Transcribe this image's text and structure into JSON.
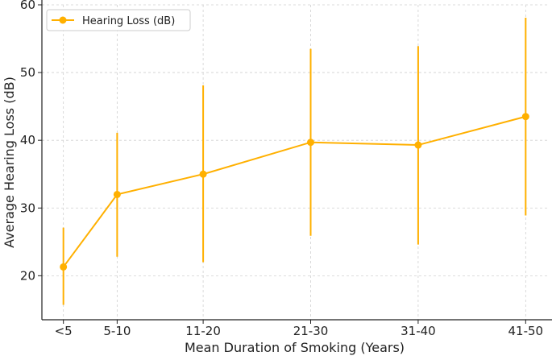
{
  "chart_data": {
    "type": "line",
    "title": "",
    "xlabel": "Mean Duration of Smoking (Years)",
    "ylabel": "Average Hearing Loss (dB)",
    "x_positions": [
      2.5,
      7.5,
      15.5,
      25.5,
      35.5,
      45.5
    ],
    "xlim": [
      0.5,
      47.5
    ],
    "categories": [
      "<5",
      "5-10",
      "11-20",
      "21-30",
      "31-40",
      "41-50"
    ],
    "ylim": [
      13.5,
      60
    ],
    "yticks": [
      20,
      30,
      40,
      50,
      60
    ],
    "grid": true,
    "legend_position": "top-left",
    "colors": {
      "series": "#FFB000",
      "grid": "#d0d0d0",
      "axis": "#222222"
    },
    "series": [
      {
        "name": "Hearing Loss (dB)",
        "values": [
          21.3,
          32.0,
          35.0,
          39.7,
          39.3,
          43.5
        ],
        "error_lower": [
          15.7,
          22.8,
          22.0,
          25.9,
          24.6,
          28.9
        ],
        "error_upper": [
          27.1,
          41.1,
          48.1,
          53.5,
          53.9,
          58.1
        ]
      }
    ]
  }
}
